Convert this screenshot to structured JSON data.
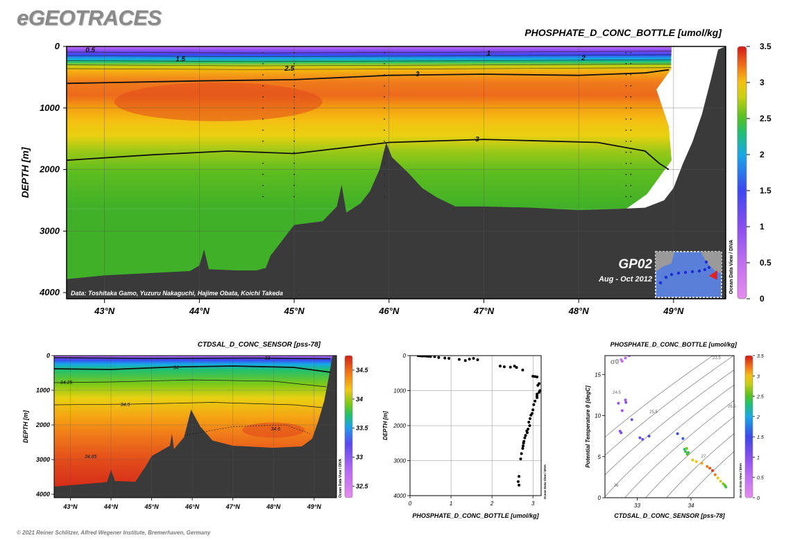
{
  "brand": "eGEOTRACES",
  "footer": "© 2021 Reiner Schlitzer, Alfred Wegener Institute, Bremerhaven, Germany",
  "odv_credit": "Ocean Data View / DIVA",
  "colors": {
    "land": "#3a3a3a",
    "contour": "#111111",
    "point": "#000000",
    "track": "#1a2bd6",
    "track_highlight": "#e32020"
  },
  "chart_data": [
    {
      "id": "main_section",
      "type": "heatmap",
      "title": "PHOSPHATE_D_CONC_BOTTLE [umol/kg]",
      "ylabel": "DEPTH [m]",
      "xlabel": "",
      "x_ticks": [
        "43°N",
        "44°N",
        "45°N",
        "46°N",
        "47°N",
        "48°N",
        "49°N"
      ],
      "x_tick_values": [
        43,
        44,
        45,
        46,
        47,
        48,
        49
      ],
      "xlim": [
        42.6,
        49.55
      ],
      "y_ticks": [
        "0",
        "1000",
        "2000",
        "3000",
        "4000"
      ],
      "y_tick_values": [
        0,
        1000,
        2000,
        3000,
        4000
      ],
      "ylim": [
        0,
        4100
      ],
      "colorbar": {
        "ticks": [
          "0",
          "0.5",
          "1",
          "1.5",
          "2",
          "2.5",
          "3",
          "3.5"
        ],
        "tick_values": [
          0,
          0.5,
          1,
          1.5,
          2,
          2.5,
          3,
          3.5
        ],
        "range": [
          0,
          3.5
        ]
      },
      "contour_labels": [
        {
          "text": "0.5",
          "lat": 42.85,
          "depth": 60
        },
        {
          "text": "1.5",
          "lat": 43.8,
          "depth": 210
        },
        {
          "text": "2.5",
          "lat": 44.95,
          "depth": 360
        },
        {
          "text": "3",
          "lat": 46.3,
          "depth": 450
        },
        {
          "text": "1",
          "lat": 47.05,
          "depth": 110
        },
        {
          "text": "2",
          "lat": 48.05,
          "depth": 190
        },
        {
          "text": "3",
          "lat": 46.93,
          "depth": 1510
        }
      ],
      "section_label": "GP02",
      "cruise_dates": "Aug - Oct 2012",
      "data_credit": "Data: Toshitaka Gamo, Yuzuru Nakaguchi, Hajime Obata, Koichi Takeda"
    },
    {
      "id": "salinity_section",
      "type": "heatmap",
      "title": "CTDSAL_D_CONC_SENSOR [pss-78]",
      "ylabel": "DEPTH [m]",
      "x_ticks": [
        "43°N",
        "44°N",
        "45°N",
        "46°N",
        "47°N",
        "48°N",
        "49°N"
      ],
      "x_tick_values": [
        43,
        44,
        45,
        46,
        47,
        48,
        49
      ],
      "xlim": [
        42.6,
        49.55
      ],
      "y_ticks": [
        "0",
        "1000",
        "2000",
        "3000",
        "4000"
      ],
      "y_tick_values": [
        0,
        1000,
        2000,
        3000,
        4000
      ],
      "ylim": [
        0,
        4100
      ],
      "colorbar": {
        "ticks": [
          "32.5",
          "33",
          "33.5",
          "34",
          "34.5"
        ],
        "tick_values": [
          32.5,
          33,
          33.5,
          34,
          34.5
        ],
        "range": [
          32.3,
          34.75
        ]
      },
      "contour_labels": [
        {
          "text": "33",
          "lat": 47.85,
          "depth": 60
        },
        {
          "text": "34",
          "lat": 45.6,
          "depth": 330
        },
        {
          "text": "34.25",
          "lat": 42.9,
          "depth": 760
        },
        {
          "text": "34.5",
          "lat": 44.35,
          "depth": 1400
        },
        {
          "text": "34.6",
          "lat": 48.05,
          "depth": 2100
        },
        {
          "text": "34.65",
          "lat": 43.5,
          "depth": 2900
        }
      ]
    },
    {
      "id": "profile",
      "type": "scatter",
      "xlabel": "PHOSPHATE_D_CONC_BOTTLE [umol/kg]",
      "ylabel": "DEPTH [m]",
      "x_ticks": [
        "0",
        "1",
        "2",
        "3"
      ],
      "x_tick_values": [
        0,
        1,
        2,
        3
      ],
      "xlim": [
        0,
        3.2
      ],
      "y_ticks": [
        "0",
        "1000",
        "2000",
        "3000",
        "4000"
      ],
      "y_tick_values": [
        0,
        1000,
        2000,
        3000,
        4000
      ],
      "ylim": [
        0,
        4000
      ],
      "points": [
        [
          0.2,
          5
        ],
        [
          0.25,
          8
        ],
        [
          0.3,
          12
        ],
        [
          0.35,
          10
        ],
        [
          0.4,
          15
        ],
        [
          0.45,
          20
        ],
        [
          0.5,
          25
        ],
        [
          0.6,
          30
        ],
        [
          0.7,
          55
        ],
        [
          0.85,
          70
        ],
        [
          0.95,
          80
        ],
        [
          1.2,
          110
        ],
        [
          1.35,
          140
        ],
        [
          1.45,
          100
        ],
        [
          1.55,
          80
        ],
        [
          1.65,
          120
        ],
        [
          2.2,
          300
        ],
        [
          2.3,
          320
        ],
        [
          2.45,
          330
        ],
        [
          2.55,
          300
        ],
        [
          2.6,
          340
        ],
        [
          2.75,
          410
        ],
        [
          3.0,
          590
        ],
        [
          3.05,
          600
        ],
        [
          3.1,
          610
        ],
        [
          3.15,
          800
        ],
        [
          3.12,
          850
        ],
        [
          3.17,
          1000
        ],
        [
          3.15,
          1050
        ],
        [
          3.1,
          1100
        ],
        [
          3.1,
          1150
        ],
        [
          3.1,
          1200
        ],
        [
          3.05,
          1300
        ],
        [
          3.02,
          1400
        ],
        [
          3.0,
          1550
        ],
        [
          2.98,
          1650
        ],
        [
          2.95,
          1700
        ],
        [
          2.93,
          1800
        ],
        [
          2.9,
          1900
        ],
        [
          2.92,
          2000
        ],
        [
          2.88,
          2100
        ],
        [
          2.85,
          2150
        ],
        [
          2.86,
          2200
        ],
        [
          2.82,
          2280
        ],
        [
          2.8,
          2350
        ],
        [
          2.78,
          2450
        ],
        [
          2.77,
          2500
        ],
        [
          2.76,
          2580
        ],
        [
          2.75,
          2650
        ],
        [
          2.72,
          2800
        ],
        [
          2.7,
          2950
        ],
        [
          2.66,
          3450
        ],
        [
          2.64,
          3600
        ],
        [
          2.66,
          3700
        ]
      ]
    },
    {
      "id": "ts_diagram",
      "type": "scatter",
      "title": "PHOSPHATE_D_CONC_BOTTLE [umol/kg]",
      "xlabel": "CTDSAL_D_CONC_SENSOR [pss-78]",
      "ylabel": "Potential Temperature θ [degC]",
      "x_ticks": [
        "33",
        "34"
      ],
      "x_tick_values": [
        33,
        34
      ],
      "xlim": [
        32.4,
        34.8
      ],
      "y_ticks": [
        "0",
        "5",
        "10",
        "15"
      ],
      "y_tick_values": [
        0,
        5,
        10,
        15
      ],
      "ylim": [
        0,
        17.3
      ],
      "sigma_label": "σ0",
      "isopycnal_labels": [
        "23.5",
        "24.5",
        "25.5",
        "26.5",
        "27",
        "26"
      ],
      "colorbar": {
        "ticks": [
          "0",
          "0.5",
          "1",
          "1.5",
          "2",
          "2.5",
          "3",
          "3.5"
        ],
        "tick_values": [
          0,
          0.5,
          1,
          1.5,
          2,
          2.5,
          3,
          3.5
        ],
        "range": [
          0,
          3.5
        ]
      },
      "points": [
        [
          32.7,
          16.8,
          0.4
        ],
        [
          32.72,
          16.6,
          0.5
        ],
        [
          32.78,
          17.0,
          0.6
        ],
        [
          32.85,
          17.3,
          0.7
        ],
        [
          32.65,
          11.5,
          0.9
        ],
        [
          32.78,
          11.9,
          0.8
        ],
        [
          32.79,
          11.6,
          1.0
        ],
        [
          32.72,
          10.6,
          0.9
        ],
        [
          32.9,
          9.5,
          1.2
        ],
        [
          32.68,
          8.1,
          1.0
        ],
        [
          32.7,
          7.9,
          1.1
        ],
        [
          33.05,
          7.3,
          1.3
        ],
        [
          33.1,
          7.1,
          1.2
        ],
        [
          33.22,
          7.5,
          1.4
        ],
        [
          33.75,
          7.8,
          1.5
        ],
        [
          33.85,
          7.2,
          1.6
        ],
        [
          33.88,
          5.9,
          2.3
        ],
        [
          33.9,
          5.6,
          2.4
        ],
        [
          33.93,
          5.3,
          2.5
        ],
        [
          33.92,
          6.0,
          2.6
        ],
        [
          33.95,
          5.5,
          2.4
        ],
        [
          34.03,
          4.6,
          2.9
        ],
        [
          34.1,
          4.4,
          3.0
        ],
        [
          34.2,
          4.2,
          3.1
        ],
        [
          34.3,
          3.8,
          3.2
        ],
        [
          34.35,
          3.6,
          3.3
        ],
        [
          34.4,
          3.3,
          3.4
        ],
        [
          34.45,
          2.8,
          3.2
        ],
        [
          34.5,
          2.4,
          3.0
        ],
        [
          34.55,
          2.0,
          2.8
        ],
        [
          34.6,
          1.7,
          2.6
        ],
        [
          34.63,
          1.5,
          2.5
        ],
        [
          34.65,
          1.3,
          2.4
        ]
      ]
    }
  ]
}
